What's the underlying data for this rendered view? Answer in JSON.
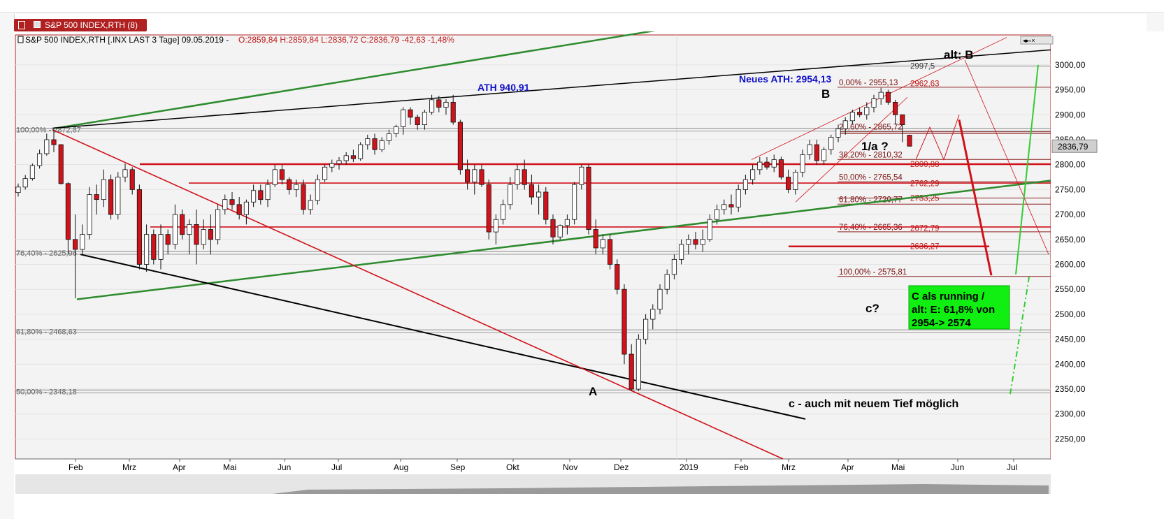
{
  "window": {
    "tab_title": "S&P 500 INDEX,RTH (8)"
  },
  "header": {
    "symbol_text": "S&P 500 INDEX,RTH [.INX LAST 3 Tage] 09.05.2019 - ",
    "ohlc_text": "O:2859,84 H:2859,84 L:2836,72 C:2836,79 -42,63 -1,48%"
  },
  "colors": {
    "up_candle": "#ffffff",
    "down_candle": "#d0121b",
    "support": "#d0121b",
    "trend_green": "#2e8b2e",
    "trend_black": "#000000",
    "label_blue": "#1010c8",
    "price_box": "#cfcfcf",
    "note_box": "#11ee11"
  },
  "chart_data": {
    "type": "candlestick",
    "title": "S&P 500 INDEX,RTH",
    "ylim": [
      2210,
      3060
    ],
    "y_ticks": [
      2250,
      2300,
      2350,
      2400,
      2450,
      2500,
      2550,
      2600,
      2650,
      2700,
      2750,
      2800,
      2850,
      2900,
      2950,
      3000
    ],
    "y_tick_labels": [
      "2250,00",
      "2300,00",
      "2350,00",
      "2400,00",
      "2450,00",
      "2500,00",
      "2550,00",
      "2600,00",
      "2650,00",
      "2700,00",
      "2750,00",
      "2800,00",
      "2850,00",
      "2900,00",
      "2950,00",
      "3000,00"
    ],
    "x_labels": [
      "Feb",
      "Mrz",
      "Apr",
      "Mai",
      "Jun",
      "Jul",
      "Aug",
      "Sep",
      "Okt",
      "Nov",
      "Dez",
      "2019",
      "Feb",
      "Mrz",
      "Apr",
      "Mai",
      "Jun",
      "Jul"
    ],
    "last_price": "2836,79",
    "weekly_candles_ohlc": [
      [
        2744,
        2762,
        2736,
        2755
      ],
      [
        2755,
        2779,
        2750,
        2772
      ],
      [
        2772,
        2802,
        2768,
        2798
      ],
      [
        2798,
        2830,
        2792,
        2822
      ],
      [
        2822,
        2862,
        2818,
        2850
      ],
      [
        2850,
        2872,
        2825,
        2840
      ],
      [
        2840,
        2841,
        2760,
        2762
      ],
      [
        2762,
        2765,
        2620,
        2650
      ],
      [
        2650,
        2700,
        2532,
        2630
      ],
      [
        2630,
        2680,
        2620,
        2660
      ],
      [
        2660,
        2755,
        2650,
        2740
      ],
      [
        2740,
        2760,
        2700,
        2730
      ],
      [
        2730,
        2790,
        2715,
        2770
      ],
      [
        2770,
        2780,
        2690,
        2700
      ],
      [
        2700,
        2785,
        2690,
        2775
      ],
      [
        2775,
        2802,
        2765,
        2790
      ],
      [
        2790,
        2795,
        2740,
        2750
      ],
      [
        2750,
        2760,
        2590,
        2600
      ],
      [
        2600,
        2680,
        2585,
        2660
      ],
      [
        2660,
        2670,
        2600,
        2610
      ],
      [
        2610,
        2680,
        2590,
        2660
      ],
      [
        2660,
        2670,
        2620,
        2640
      ],
      [
        2640,
        2720,
        2630,
        2700
      ],
      [
        2700,
        2710,
        2650,
        2660
      ],
      [
        2660,
        2690,
        2620,
        2680
      ],
      [
        2680,
        2710,
        2600,
        2640
      ],
      [
        2640,
        2690,
        2630,
        2670
      ],
      [
        2670,
        2700,
        2620,
        2650
      ],
      [
        2650,
        2720,
        2640,
        2710
      ],
      [
        2710,
        2740,
        2700,
        2730
      ],
      [
        2730,
        2745,
        2710,
        2720
      ],
      [
        2720,
        2735,
        2690,
        2700
      ],
      [
        2700,
        2730,
        2680,
        2725
      ],
      [
        2725,
        2760,
        2715,
        2748
      ],
      [
        2748,
        2760,
        2720,
        2730
      ],
      [
        2730,
        2770,
        2715,
        2760
      ],
      [
        2760,
        2800,
        2755,
        2790
      ],
      [
        2790,
        2800,
        2760,
        2770
      ],
      [
        2770,
        2775,
        2740,
        2750
      ],
      [
        2750,
        2770,
        2735,
        2760
      ],
      [
        2760,
        2770,
        2700,
        2710
      ],
      [
        2710,
        2740,
        2700,
        2728
      ],
      [
        2728,
        2780,
        2720,
        2770
      ],
      [
        2770,
        2800,
        2765,
        2795
      ],
      [
        2795,
        2810,
        2785,
        2802
      ],
      [
        2802,
        2815,
        2790,
        2808
      ],
      [
        2808,
        2825,
        2800,
        2818
      ],
      [
        2818,
        2830,
        2805,
        2812
      ],
      [
        2812,
        2845,
        2808,
        2840
      ],
      [
        2840,
        2860,
        2830,
        2852
      ],
      [
        2852,
        2862,
        2820,
        2830
      ],
      [
        2830,
        2855,
        2825,
        2848
      ],
      [
        2848,
        2870,
        2840,
        2862
      ],
      [
        2862,
        2880,
        2855,
        2876
      ],
      [
        2876,
        2915,
        2860,
        2910
      ],
      [
        2910,
        2915,
        2880,
        2895
      ],
      [
        2895,
        2900,
        2870,
        2880
      ],
      [
        2880,
        2910,
        2870,
        2905
      ],
      [
        2905,
        2940,
        2900,
        2930
      ],
      [
        2930,
        2938,
        2905,
        2915
      ],
      [
        2915,
        2931,
        2900,
        2925
      ],
      [
        2925,
        2940,
        2880,
        2885
      ],
      [
        2885,
        2890,
        2780,
        2790
      ],
      [
        2790,
        2810,
        2750,
        2765
      ],
      [
        2765,
        2800,
        2740,
        2790
      ],
      [
        2790,
        2800,
        2755,
        2760
      ],
      [
        2760,
        2770,
        2650,
        2665
      ],
      [
        2665,
        2700,
        2640,
        2690
      ],
      [
        2690,
        2730,
        2680,
        2720
      ],
      [
        2720,
        2775,
        2710,
        2760
      ],
      [
        2760,
        2800,
        2750,
        2790
      ],
      [
        2790,
        2810,
        2750,
        2760
      ],
      [
        2760,
        2780,
        2720,
        2735
      ],
      [
        2735,
        2760,
        2700,
        2745
      ],
      [
        2745,
        2755,
        2680,
        2690
      ],
      [
        2690,
        2700,
        2640,
        2655
      ],
      [
        2655,
        2680,
        2650,
        2678
      ],
      [
        2678,
        2700,
        2660,
        2690
      ],
      [
        2690,
        2765,
        2680,
        2760
      ],
      [
        2760,
        2800,
        2750,
        2795
      ],
      [
        2795,
        2800,
        2660,
        2670
      ],
      [
        2670,
        2690,
        2620,
        2633
      ],
      [
        2633,
        2660,
        2620,
        2650
      ],
      [
        2650,
        2660,
        2590,
        2600
      ],
      [
        2600,
        2610,
        2540,
        2550
      ],
      [
        2550,
        2560,
        2400,
        2420
      ],
      [
        2420,
        2440,
        2346,
        2350
      ],
      [
        2350,
        2460,
        2346,
        2450
      ],
      [
        2450,
        2500,
        2440,
        2490
      ],
      [
        2490,
        2520,
        2470,
        2510
      ],
      [
        2510,
        2560,
        2500,
        2550
      ],
      [
        2550,
        2590,
        2540,
        2580
      ],
      [
        2580,
        2620,
        2570,
        2610
      ],
      [
        2610,
        2650,
        2600,
        2640
      ],
      [
        2640,
        2660,
        2620,
        2650
      ],
      [
        2650,
        2665,
        2630,
        2640
      ],
      [
        2640,
        2670,
        2625,
        2650
      ],
      [
        2650,
        2700,
        2645,
        2690
      ],
      [
        2690,
        2720,
        2680,
        2710
      ],
      [
        2710,
        2730,
        2700,
        2720
      ],
      [
        2720,
        2740,
        2700,
        2715
      ],
      [
        2715,
        2760,
        2705,
        2750
      ],
      [
        2750,
        2780,
        2740,
        2770
      ],
      [
        2770,
        2800,
        2760,
        2790
      ],
      [
        2790,
        2815,
        2780,
        2805
      ],
      [
        2805,
        2815,
        2790,
        2795
      ],
      [
        2795,
        2820,
        2785,
        2810
      ],
      [
        2810,
        2816,
        2770,
        2775
      ],
      [
        2775,
        2790,
        2743,
        2750
      ],
      [
        2750,
        2790,
        2740,
        2785
      ],
      [
        2785,
        2830,
        2775,
        2820
      ],
      [
        2820,
        2850,
        2810,
        2840
      ],
      [
        2840,
        2850,
        2800,
        2808
      ],
      [
        2808,
        2835,
        2800,
        2830
      ],
      [
        2830,
        2860,
        2820,
        2855
      ],
      [
        2855,
        2880,
        2845,
        2872
      ],
      [
        2872,
        2895,
        2860,
        2888
      ],
      [
        2888,
        2910,
        2880,
        2905
      ],
      [
        2905,
        2915,
        2895,
        2900
      ],
      [
        2900,
        2925,
        2890,
        2915
      ],
      [
        2915,
        2940,
        2905,
        2932
      ],
      [
        2932,
        2954,
        2920,
        2945
      ],
      [
        2945,
        2950,
        2920,
        2925
      ],
      [
        2925,
        2930,
        2880,
        2900
      ],
      [
        2900,
        2900,
        2845,
        2880
      ],
      [
        2859,
        2860,
        2836,
        2837
      ]
    ],
    "fib_left": [
      {
        "label": "100,00% - 2872,87",
        "value": 2872.87
      },
      {
        "label": "76,40% - 2625,96",
        "value": 2625.96
      },
      {
        "label": "61,80% - 2468,63",
        "value": 2468.63
      },
      {
        "label": "50,00% - 2348,18",
        "value": 2348.18
      }
    ],
    "fib_right": [
      {
        "label": "0,00% - 2955,13",
        "value": 2955.13
      },
      {
        "label": "23,60% - 2865,72",
        "value": 2865.72
      },
      {
        "label": "38,20% - 2810,32",
        "value": 2810.32
      },
      {
        "label": "50,00% - 2765,54",
        "value": 2765.54
      },
      {
        "label": "61,80% - 2720,77",
        "value": 2720.77
      },
      {
        "label": "76,40% - 2665,36",
        "value": 2665.36
      },
      {
        "label": "100,00% - 2575,81",
        "value": 2575.81
      }
    ],
    "levels_red": [
      {
        "label": "2962,63",
        "value": 2962.63
      },
      {
        "label": "2800,88",
        "value": 2800.88
      },
      {
        "label": "2762,29",
        "value": 2762.29
      },
      {
        "label": "2733,25",
        "value": 2733.25
      },
      {
        "label": "2672,79",
        "value": 2672.79
      },
      {
        "label": "2636,27",
        "value": 2636.27
      }
    ],
    "level_top": {
      "label": "2997,5",
      "value": 2997.5
    },
    "annotations": {
      "ath_old": "ATH 940,91",
      "ath_new": "Neues ATH: 2954,13",
      "wave_b": "B",
      "alt_b": "alt: B",
      "wave_1a": "1/a ?",
      "wave_a": "A",
      "wave_c_q": "c?",
      "c_note": "c - auch mit neuem Tief möglich",
      "box_line1": "C als running /",
      "box_line2": "alt: E: 61,8% von",
      "box_line3": "2954-> 2574"
    }
  }
}
